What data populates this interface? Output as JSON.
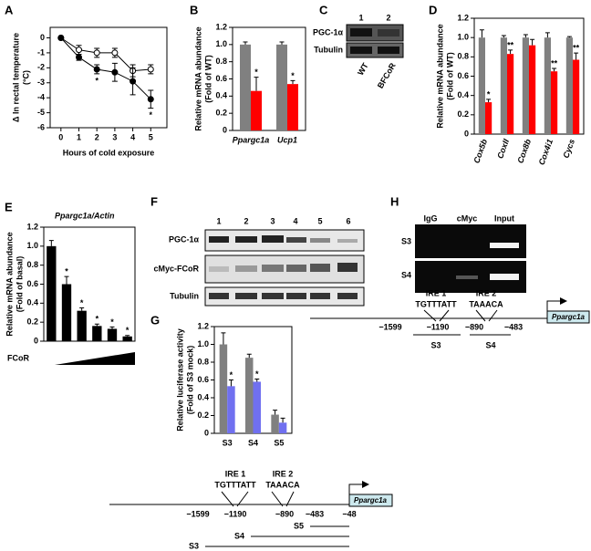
{
  "panel_labels": [
    "A",
    "B",
    "C",
    "D",
    "E",
    "F",
    "G",
    "H"
  ],
  "chart_data": [
    {
      "type": "line",
      "y_label": [
        "Δ In rectal temperature",
        "(°C)"
      ],
      "x_label": "Hours of cold exposure",
      "x": [
        0,
        1,
        2,
        3,
        4,
        5
      ],
      "xlim": [
        -0.6,
        5.9
      ],
      "xticks": [
        0,
        1,
        2,
        3,
        4,
        5
      ],
      "ylim": [
        -6,
        0.7
      ],
      "yticks": [
        0,
        -1,
        -2,
        -3,
        -4,
        -5,
        -6
      ],
      "series": [
        {
          "color": "#000000",
          "fill": "#ffffff",
          "values": [
            0,
            -0.8,
            -1.0,
            -1.0,
            -2.2,
            -2.1
          ],
          "errors": [
            0.05,
            0.3,
            0.3,
            0.3,
            0.4,
            0.3
          ],
          "significance": [
            null,
            null,
            null,
            null,
            null,
            null
          ]
        },
        {
          "color": "#000000",
          "fill": "#000000",
          "values": [
            0,
            -1.3,
            -2.1,
            -2.3,
            -2.9,
            -4.1
          ],
          "errors": [
            0.05,
            0.2,
            0.3,
            0.6,
            0.9,
            0.6
          ],
          "significance": [
            null,
            null,
            "*",
            null,
            null,
            "*"
          ]
        }
      ]
    },
    {
      "type": "bar",
      "y_label": [
        "Relative mRNA abundance",
        "(Fold of WT)"
      ],
      "categories": [
        "Ppargc1a",
        "Ucp1"
      ],
      "ylim": [
        0,
        1.2
      ],
      "yticks": [
        0,
        0.2,
        0.4,
        0.6,
        0.8,
        {
          "value": 1,
          "label": "1.0"
        },
        1.2
      ],
      "series": [
        {
          "color": "#808080",
          "values": [
            1.0,
            1.0
          ],
          "errors": [
            0.03,
            0.03
          ],
          "significance": [
            null,
            null
          ]
        },
        {
          "color": "#ff0000",
          "values": [
            0.46,
            0.54
          ],
          "errors": [
            0.16,
            0.04
          ],
          "significance": [
            "*",
            "*"
          ]
        }
      ]
    },
    {
      "type": "bar",
      "y_label": [
        "Relative mRNA abundance",
        "(Fold of WT)"
      ],
      "categories": [
        "Cox5b",
        "CoxII",
        "Cox8b",
        "Cox4i1",
        "Cycs"
      ],
      "ylim": [
        0,
        1.2
      ],
      "yticks": [
        0,
        0.2,
        0.4,
        0.6,
        0.8,
        {
          "value": 1,
          "label": "1.0"
        },
        1.2
      ],
      "series": [
        {
          "color": "#808080",
          "values": [
            1.0,
            1.0,
            1.0,
            1.0,
            1.0
          ],
          "errors": [
            0.08,
            0.02,
            0.03,
            0.05,
            0.01
          ],
          "significance": [
            null,
            null,
            null,
            null,
            null
          ]
        },
        {
          "color": "#ff0000",
          "values": [
            0.33,
            0.83,
            0.92,
            0.65,
            0.77
          ],
          "errors": [
            0.03,
            0.04,
            0.06,
            0.03,
            0.07
          ],
          "significance": [
            "*",
            "**",
            null,
            "**",
            "**"
          ]
        }
      ]
    },
    {
      "type": "bar",
      "title": "Ppargc1a/Actin",
      "y_label": [
        "Relative mRNA abundance",
        "(Fold of basal)"
      ],
      "x_label": "FCoR",
      "categories": [
        null,
        null,
        null,
        null,
        null,
        null
      ],
      "ylim": [
        0,
        1.2
      ],
      "yticks": [
        0,
        0.2,
        0.4,
        0.6,
        0.8,
        {
          "value": 1,
          "label": "1.0"
        },
        1.2
      ],
      "series": [
        {
          "color": "#000000",
          "values": [
            1.0,
            0.6,
            0.32,
            0.16,
            0.13,
            0.05
          ],
          "errors": [
            0.06,
            0.08,
            0.03,
            0.02,
            0.02,
            0.01
          ],
          "significance": [
            null,
            "*",
            "*",
            "*",
            "*",
            "*"
          ]
        }
      ]
    },
    {
      "type": "bar",
      "y_label": [
        "Relative luciferase activity",
        "(Fold of S3 mock)"
      ],
      "categories": [
        "S3",
        "S4",
        "S5"
      ],
      "ylim": [
        0,
        1.2
      ],
      "yticks": [
        0,
        0.2,
        0.4,
        0.6,
        0.8,
        {
          "value": 1,
          "label": "1.0"
        },
        1.2
      ],
      "series": [
        {
          "color": "#808080",
          "values": [
            1.0,
            0.85,
            0.21
          ],
          "errors": [
            0.13,
            0.04,
            0.05
          ],
          "significance": [
            null,
            null,
            null
          ]
        },
        {
          "color": "#7070f0",
          "values": [
            0.53,
            0.58,
            0.12
          ],
          "errors": [
            0.07,
            0.03,
            0.05
          ],
          "significance": [
            "*",
            "*",
            null
          ]
        }
      ]
    }
  ],
  "blot_c": {
    "lanes": [
      "1",
      "2"
    ],
    "rows": [
      "PGC-1α",
      "Tubulin"
    ],
    "samples": [
      "WT",
      "BFCoR"
    ]
  },
  "blot_f": {
    "lanes": [
      "1",
      "2",
      "3",
      "4",
      "5",
      "6"
    ],
    "rows": [
      "PGC-1α",
      "cMyc-FCoR",
      "Tubulin"
    ]
  },
  "chip_h": {
    "columns": [
      "IgG",
      "cMyc",
      "Input"
    ],
    "rows": [
      "S3",
      "S4"
    ]
  },
  "promoter_h": {
    "ire1": "IRE 1",
    "ire1_seq": "TGTTTATT",
    "ire2": "IRE 2",
    "ire2_seq": "TAAACA",
    "positions": [
      "−1599",
      "−1190",
      "−890",
      "−483"
    ],
    "gene": "Ppargc1a",
    "fragments": [
      "S3",
      "S4"
    ]
  },
  "promoter_g": {
    "ire1": "IRE 1",
    "ire1_seq": "TGTTTATT",
    "ire2": "IRE 2",
    "ire2_seq": "TAAACA",
    "positions": [
      "−1599",
      "−1190",
      "−890",
      "−483",
      "−48"
    ],
    "gene": "Ppargc1a",
    "fragments": [
      "S5",
      "S4",
      "S3"
    ]
  }
}
